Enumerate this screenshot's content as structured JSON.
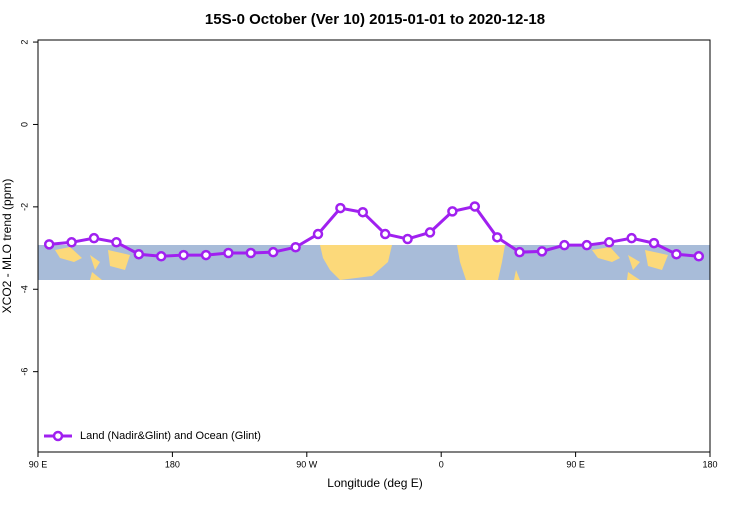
{
  "chart_data": {
    "type": "line",
    "title": "15S-0 October (Ver 10)   2015-01-01 to 2020-12-18",
    "x_label": "Longitude (deg E)",
    "y_label": "XCO2 - MLO trend (ppm)",
    "xlim": [
      90,
      540
    ],
    "xticks": [
      {
        "value": 90,
        "label": "90 E"
      },
      {
        "value": 180,
        "label": "180"
      },
      {
        "value": 270,
        "label": "90 W"
      },
      {
        "value": 360,
        "label": "0"
      },
      {
        "value": 450,
        "label": "90 E"
      },
      {
        "value": 540,
        "label": "180"
      }
    ],
    "ylim": [
      -7.95,
      2.05
    ],
    "yticks": [
      2,
      0,
      -2,
      -4,
      -6
    ],
    "legend": "bottomleft",
    "x": [
      97.5,
      112.5,
      127.5,
      142.5,
      157.5,
      172.5,
      187.5,
      202.5,
      217.5,
      232.5,
      247.5,
      262.5,
      277.5,
      292.5,
      307.5,
      322.5,
      337.5,
      352.5,
      367.5,
      382.5,
      397.5,
      412.5,
      427.5,
      442.5,
      457.5,
      472.5,
      487.5,
      502.5,
      517.5,
      532.5
    ],
    "series": [
      {
        "name": "Land (Nadir&Glint) and Ocean (Glint)",
        "color": "#a020f0",
        "values": [
          -2.91,
          -2.86,
          -2.76,
          -2.86,
          -3.15,
          -3.2,
          -3.17,
          -3.17,
          -3.12,
          -3.12,
          -3.1,
          -2.98,
          -2.66,
          -2.03,
          -2.13,
          -2.66,
          -2.78,
          -2.62,
          -2.11,
          -1.99,
          -2.74,
          -3.1,
          -3.08,
          -2.93,
          -2.93,
          -2.86,
          -2.76,
          -2.88,
          -3.15,
          -3.2
        ]
      }
    ]
  }
}
